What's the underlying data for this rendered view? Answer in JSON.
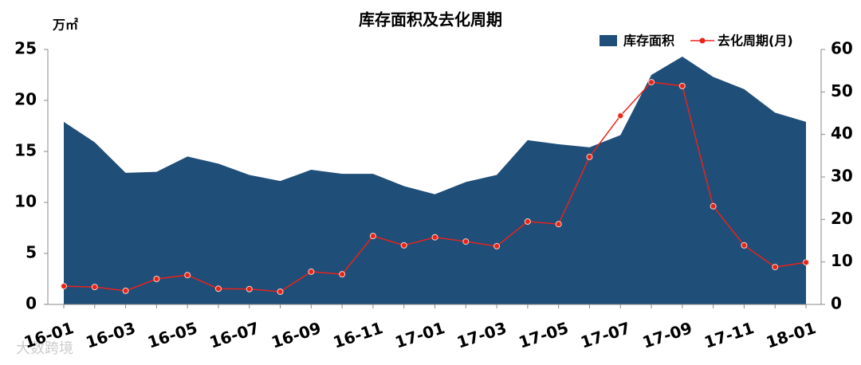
{
  "chart_data": {
    "type": "area_line",
    "title": "库存面积及去化周期",
    "y_label": "万㎡",
    "watermark": "大数跨境",
    "categories": [
      "16-01",
      null,
      "16-03",
      null,
      "16-05",
      null,
      "16-07",
      null,
      "16-09",
      null,
      "16-11",
      null,
      "17-01",
      null,
      "17-03",
      null,
      "17-05",
      null,
      "17-07",
      null,
      "17-09",
      null,
      "17-11",
      null,
      "18-01"
    ],
    "series": [
      {
        "name": "库存面积",
        "type": "area",
        "color": "#1f4e79",
        "values": [
          17.9,
          15.9,
          12.9,
          13.0,
          14.5,
          13.8,
          12.7,
          12.1,
          13.2,
          12.8,
          12.8,
          11.6,
          10.8,
          12.0,
          12.7,
          16.1,
          15.7,
          15.4,
          16.6,
          22.5,
          24.3,
          22.3,
          21.1,
          18.8,
          17.9
        ]
      },
      {
        "name": "去化周期(月)",
        "type": "line",
        "axis": "y2",
        "color": "#e8231b",
        "values": [
          4.3,
          4.1,
          3.2,
          6.0,
          6.9,
          3.7,
          3.6,
          3.0,
          7.7,
          7.1,
          16.1,
          13.9,
          15.8,
          14.8,
          13.7,
          19.5,
          18.9,
          34.7,
          44.4,
          52.3,
          51.4,
          23.1,
          13.9,
          8.8,
          9.9
        ]
      }
    ],
    "ylim": [
      0,
      25
    ],
    "yticks": [
      0,
      5,
      10,
      15,
      20,
      25
    ],
    "y2lim": [
      0,
      60
    ],
    "y2ticks": [
      0,
      10,
      20,
      30,
      40,
      50,
      60
    ],
    "legend": "top-right"
  }
}
